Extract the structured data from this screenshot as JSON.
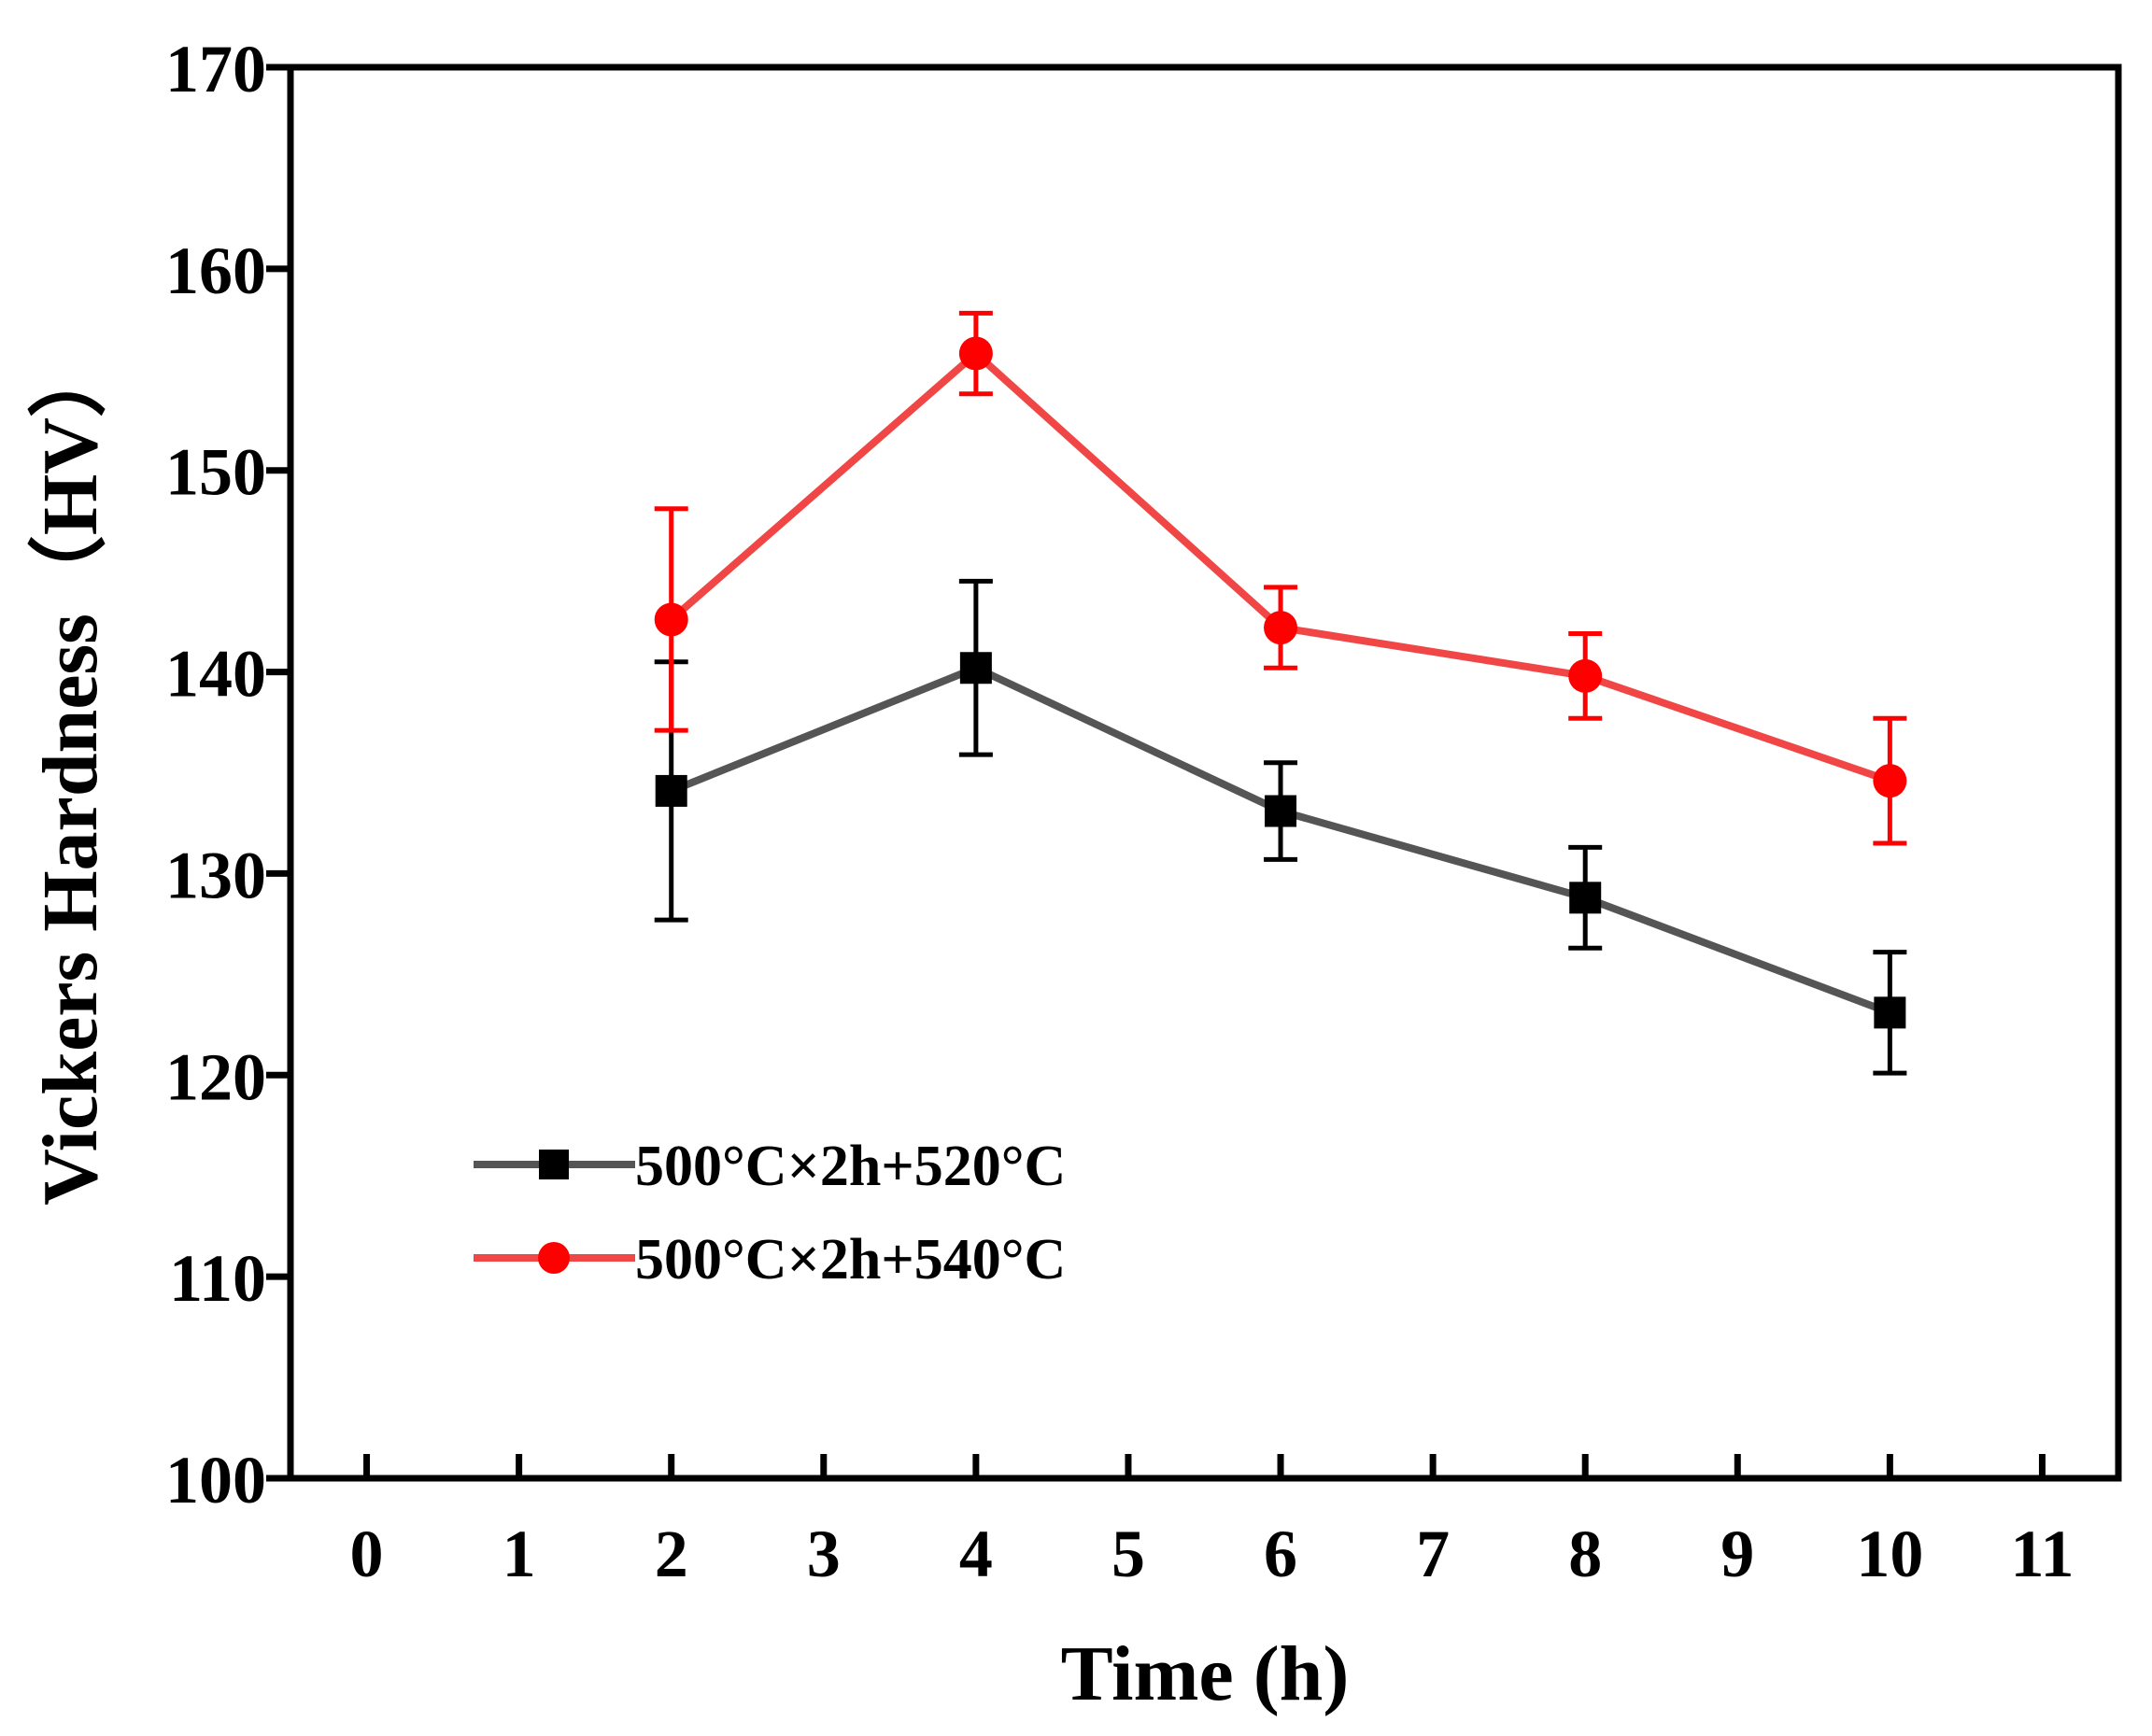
{
  "chart_data": {
    "type": "line",
    "title": "",
    "xlabel": "Time (h)",
    "ylabel": "Vickers Hardness（HV）",
    "xlim": [
      -0.5,
      11.5
    ],
    "ylim": [
      100,
      170
    ],
    "xticks": [
      0,
      1,
      2,
      3,
      4,
      5,
      6,
      7,
      8,
      9,
      10,
      11
    ],
    "yticks": [
      100,
      110,
      120,
      130,
      140,
      150,
      160,
      170
    ],
    "grid": false,
    "legend_position": "lower-left",
    "series": [
      {
        "name": "500°C×2h+520°C",
        "color": "#555555",
        "marker": "square",
        "marker_color": "#000000",
        "x": [
          2,
          4,
          6,
          8,
          10
        ],
        "y": [
          134.1,
          140.2,
          133.1,
          128.8,
          123.1
        ],
        "yerr": [
          6.4,
          4.3,
          2.4,
          2.5,
          3.0
        ]
      },
      {
        "name": "500°C×2h+540°C",
        "color": "#f04646",
        "marker": "circle",
        "marker_color": "#ff0000",
        "x": [
          2,
          4,
          6,
          8,
          10
        ],
        "y": [
          142.6,
          155.8,
          142.2,
          139.8,
          134.6
        ],
        "yerr": [
          5.5,
          2.0,
          2.0,
          2.1,
          3.1
        ]
      }
    ]
  }
}
